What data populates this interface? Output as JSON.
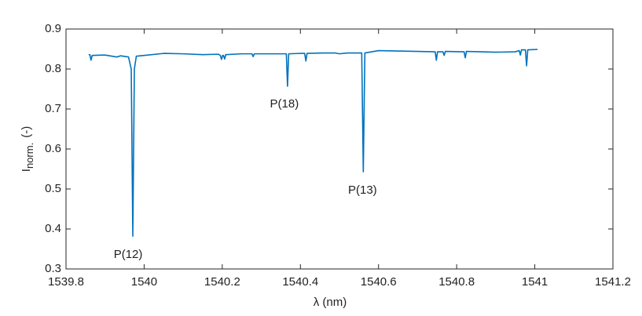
{
  "chart_data": {
    "type": "line",
    "xlabel": "λ (nm)",
    "ylabel": {
      "symbol": "I",
      "subscript": "norm.",
      "unit": "(-)"
    },
    "xlim": [
      1539.8,
      1541.2
    ],
    "xticks": [
      1539.8,
      1540,
      1540.2,
      1540.4,
      1540.6,
      1540.8,
      1541,
      1541.2
    ],
    "ylim": [
      0.3,
      0.9
    ],
    "yticks": [
      0.3,
      0.4,
      0.5,
      0.6,
      0.7,
      0.8,
      0.9
    ],
    "grid": false,
    "series": [
      {
        "color": "#0072bd",
        "x": [
          1539.858,
          1539.861,
          1539.864,
          1539.867,
          1539.9,
          1539.93,
          1539.94,
          1539.96,
          1539.967,
          1539.971,
          1539.975,
          1539.98,
          1540.0,
          1540.05,
          1540.1,
          1540.15,
          1540.19,
          1540.195,
          1540.198,
          1540.201,
          1540.203,
          1540.206,
          1540.209,
          1540.25,
          1540.276,
          1540.279,
          1540.282,
          1540.33,
          1540.364,
          1540.367,
          1540.37,
          1540.4,
          1540.411,
          1540.414,
          1540.417,
          1540.46,
          1540.49,
          1540.5,
          1540.52,
          1540.557,
          1540.561,
          1540.565,
          1540.6,
          1540.65,
          1540.7,
          1540.745,
          1540.748,
          1540.751,
          1540.765,
          1540.768,
          1540.771,
          1540.819,
          1540.822,
          1540.825,
          1540.9,
          1540.95,
          1540.96,
          1540.963,
          1540.966,
          1540.976,
          1540.979,
          1540.982,
          1541.007
        ],
        "values": [
          0.836,
          0.836,
          0.822,
          0.834,
          0.835,
          0.83,
          0.833,
          0.83,
          0.8,
          0.382,
          0.8,
          0.832,
          0.834,
          0.839,
          0.838,
          0.836,
          0.837,
          0.834,
          0.824,
          0.834,
          0.834,
          0.825,
          0.836,
          0.838,
          0.838,
          0.831,
          0.838,
          0.838,
          0.838,
          0.757,
          0.838,
          0.839,
          0.839,
          0.82,
          0.839,
          0.84,
          0.84,
          0.838,
          0.84,
          0.84,
          0.543,
          0.84,
          0.846,
          0.845,
          0.844,
          0.843,
          0.822,
          0.843,
          0.843,
          0.834,
          0.844,
          0.843,
          0.828,
          0.844,
          0.842,
          0.843,
          0.846,
          0.835,
          0.848,
          0.848,
          0.808,
          0.848,
          0.849
        ]
      }
    ],
    "annotations": [
      {
        "text": "P(12)",
        "x": 1539.959,
        "y": 0.335
      },
      {
        "text": "P(18)",
        "x": 1540.359,
        "y": 0.712
      },
      {
        "text": "P(13)",
        "x": 1540.559,
        "y": 0.496
      }
    ]
  }
}
